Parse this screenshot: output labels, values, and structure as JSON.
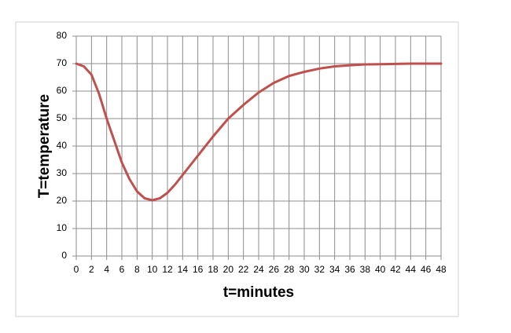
{
  "chart_data": {
    "type": "line",
    "x_label": "t=minutes",
    "y_label": "T=temperature",
    "x": [
      0,
      1,
      2,
      3,
      4,
      5,
      6,
      7,
      8,
      9,
      10,
      11,
      12,
      13,
      14,
      16,
      18,
      20,
      22,
      24,
      26,
      28,
      30,
      32,
      34,
      36,
      38,
      40,
      42,
      44,
      46,
      48
    ],
    "series": [
      {
        "color": "#c0504d",
        "values": [
          70,
          69,
          66,
          59,
          50,
          42,
          34,
          28,
          23.5,
          21,
          20.3,
          21,
          23,
          26,
          29.5,
          36.5,
          43.5,
          50,
          55,
          59.5,
          63,
          65.5,
          67,
          68.2,
          69,
          69.4,
          69.7,
          69.8,
          69.9,
          70,
          70,
          70
        ]
      }
    ],
    "xlim": [
      0,
      48
    ],
    "xticks": [
      0,
      2,
      4,
      6,
      8,
      10,
      12,
      14,
      16,
      18,
      20,
      22,
      24,
      26,
      28,
      30,
      32,
      34,
      36,
      38,
      40,
      42,
      44,
      46,
      48
    ],
    "ylim": [
      0,
      80
    ],
    "yticks": [
      0,
      10,
      20,
      30,
      40,
      50,
      60,
      70,
      80
    ],
    "grid": true
  }
}
